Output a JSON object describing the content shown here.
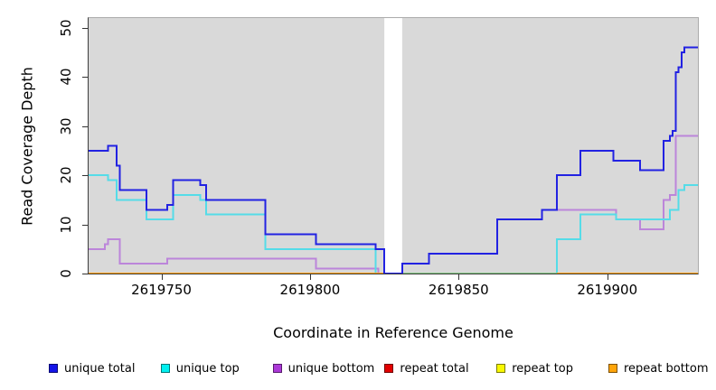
{
  "figure": {
    "background": "#ffffff",
    "plot_background": "#d9d9d9",
    "axis_color": "#3d3d3d",
    "box_color": "#ababab",
    "text_color": "#000000"
  },
  "chart_data": {
    "type": "line",
    "subtype": "step",
    "title": "",
    "xlabel": "Coordinate in Reference Genome",
    "ylabel": "Read Coverage Depth",
    "xlim": [
      2619725.5,
      2619930.5
    ],
    "ylim": [
      0,
      52
    ],
    "x_ticks": [
      2619750,
      2619800,
      2619850,
      2619900
    ],
    "y_ticks": [
      0,
      10,
      20,
      30,
      40,
      50
    ],
    "grid": false,
    "legend_position": "bottom",
    "gap_region": {
      "from": 2619825,
      "to": 2619831,
      "color": "#ffffff"
    },
    "zero_line_blend": {
      "from": 2619831,
      "to": 2619883,
      "value": 0,
      "color": "#82c882"
    },
    "draw_order": [
      "repeat_total",
      "repeat_top",
      "unique_bottom",
      "unique_top",
      "repeat_bottom",
      "zero_line_blend",
      "unique_total"
    ],
    "legend_order": [
      "unique_total",
      "unique_top",
      "unique_bottom",
      "repeat_total",
      "repeat_top",
      "repeat_bottom"
    ],
    "series": {
      "unique_total": {
        "label": "unique total",
        "color": "#2222e2",
        "legend_color": "#1414e8",
        "breaks_at_gap": false,
        "steps": [
          [
            2619725,
            25
          ],
          [
            2619732,
            26
          ],
          [
            2619735,
            22
          ],
          [
            2619736,
            17
          ],
          [
            2619745,
            13
          ],
          [
            2619752,
            14
          ],
          [
            2619754,
            19
          ],
          [
            2619763,
            18
          ],
          [
            2619765,
            15
          ],
          [
            2619785,
            8
          ],
          [
            2619802,
            6
          ],
          [
            2619822,
            5
          ],
          [
            2619825,
            0
          ],
          [
            2619831,
            2
          ],
          [
            2619840,
            4
          ],
          [
            2619863,
            11
          ],
          [
            2619878,
            13
          ],
          [
            2619883,
            20
          ],
          [
            2619891,
            25
          ],
          [
            2619902,
            23
          ],
          [
            2619911,
            21
          ],
          [
            2619919,
            27
          ],
          [
            2619921,
            28
          ],
          [
            2619922,
            29
          ],
          [
            2619923,
            41
          ],
          [
            2619924,
            42
          ],
          [
            2619925,
            45
          ],
          [
            2619926,
            46
          ]
        ]
      },
      "unique_top": {
        "label": "unique top",
        "color": "#55dce8",
        "legend_color": "#00f0f0",
        "breaks_at_gap": true,
        "steps": [
          [
            2619725,
            20
          ],
          [
            2619732,
            19
          ],
          [
            2619735,
            15
          ],
          [
            2619745,
            11
          ],
          [
            2619754,
            16
          ],
          [
            2619763,
            15
          ],
          [
            2619765,
            12
          ],
          [
            2619785,
            5
          ],
          [
            2619822,
            0
          ],
          [
            2619883,
            7
          ],
          [
            2619891,
            12
          ],
          [
            2619903,
            11
          ],
          [
            2619921,
            13
          ],
          [
            2619924,
            17
          ],
          [
            2619926,
            18
          ]
        ]
      },
      "unique_bottom": {
        "label": "unique bottom",
        "color": "#bc85da",
        "legend_color": "#ac39d8",
        "breaks_at_gap": true,
        "steps": [
          [
            2619725,
            5
          ],
          [
            2619731,
            6
          ],
          [
            2619732,
            7
          ],
          [
            2619736,
            2
          ],
          [
            2619752,
            3
          ],
          [
            2619802,
            1
          ],
          [
            2619823,
            0
          ],
          [
            2619831,
            2
          ],
          [
            2619840,
            4
          ],
          [
            2619863,
            11
          ],
          [
            2619878,
            13
          ],
          [
            2619903,
            11
          ],
          [
            2619911,
            9
          ],
          [
            2619919,
            15
          ],
          [
            2619921,
            16
          ],
          [
            2619923,
            28
          ]
        ]
      },
      "repeat_total": {
        "label": "repeat total",
        "color": "#e20000",
        "legend_color": "#e20000",
        "breaks_at_gap": true,
        "steps": [
          [
            2619725,
            0
          ]
        ]
      },
      "repeat_top": {
        "label": "repeat top",
        "color": "#f8f800",
        "legend_color": "#f8f800",
        "breaks_at_gap": true,
        "steps": [
          [
            2619725,
            0
          ]
        ]
      },
      "repeat_bottom": {
        "label": "repeat bottom",
        "color": "#ff9d0b",
        "legend_color": "#ffa50a",
        "breaks_at_gap": true,
        "steps": [
          [
            2619725,
            0
          ]
        ]
      }
    }
  }
}
